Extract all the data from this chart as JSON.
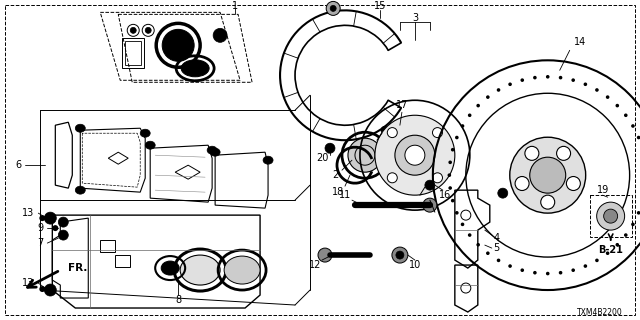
{
  "background": "#ffffff",
  "diagram_code": "TXM4B2200",
  "ref_code": "B-21",
  "lw": 0.8,
  "col": "#000000"
}
